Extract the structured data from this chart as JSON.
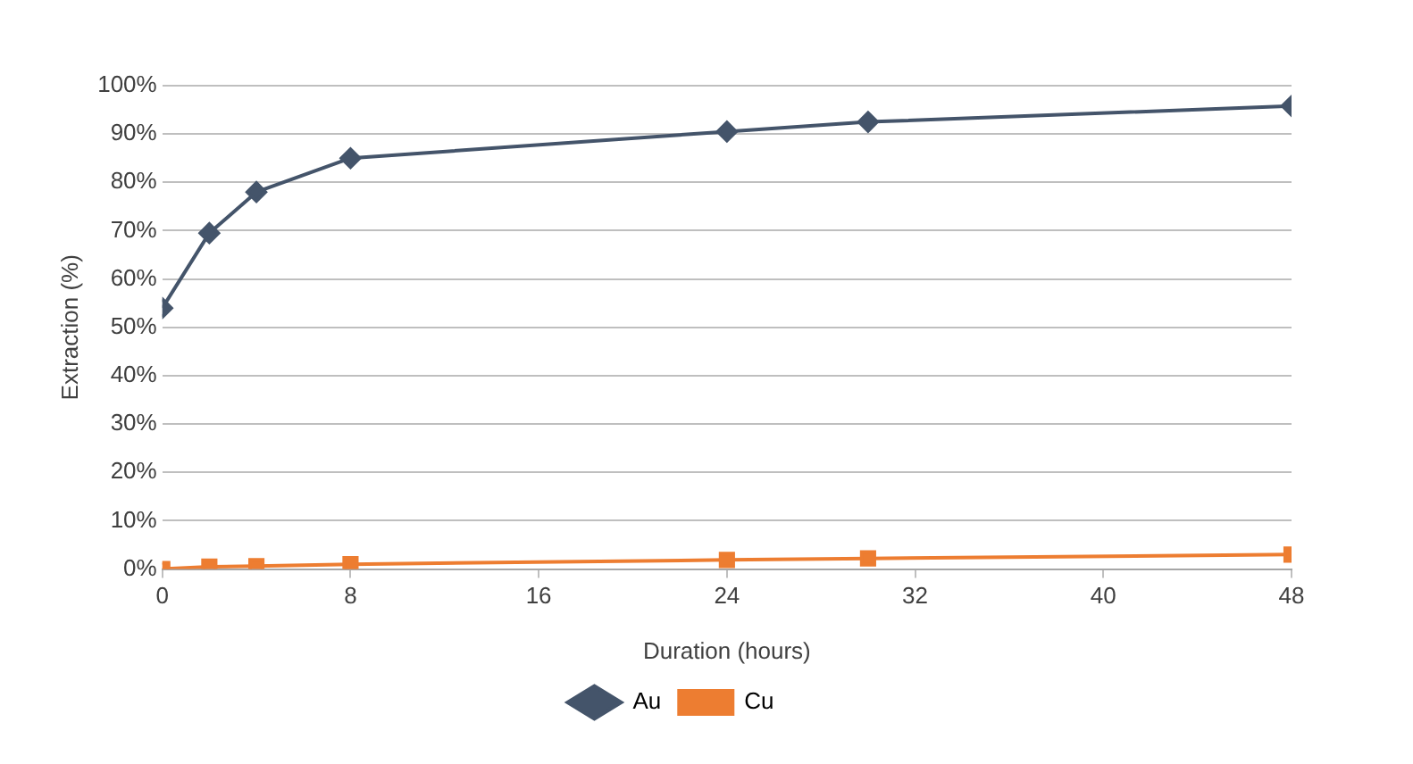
{
  "chart_data": {
    "type": "line",
    "xlabel": "Duration (hours)",
    "ylabel": "Extraction (%)",
    "x": [
      0,
      2,
      4,
      8,
      24,
      30,
      48
    ],
    "series": [
      {
        "name": "Au",
        "color": "#44546a",
        "marker": "diamond",
        "values": [
          54,
          69.5,
          78,
          85,
          90.5,
          92.5,
          95.8
        ]
      },
      {
        "name": "Cu",
        "color": "#ed7d31",
        "marker": "square",
        "values": [
          0,
          0.5,
          0.6,
          1,
          1.9,
          2.2,
          3
        ]
      }
    ],
    "xlim": [
      0,
      48
    ],
    "xticks": [
      0,
      8,
      16,
      24,
      32,
      40,
      48
    ],
    "ylim": [
      0,
      100
    ],
    "yticks": [
      {
        "value": 0,
        "label": "0%"
      },
      {
        "value": 10,
        "label": "10%"
      },
      {
        "value": 20,
        "label": "20%"
      },
      {
        "value": 30,
        "label": "30%"
      },
      {
        "value": 40,
        "label": "40%"
      },
      {
        "value": 50,
        "label": "50%"
      },
      {
        "value": 60,
        "label": "60%"
      },
      {
        "value": 70,
        "label": "70%"
      },
      {
        "value": 80,
        "label": "80%"
      },
      {
        "value": 90,
        "label": "90%"
      },
      {
        "value": 100,
        "label": "100%"
      }
    ],
    "grid": "y",
    "legend": "bottom",
    "line_style": "solid"
  }
}
